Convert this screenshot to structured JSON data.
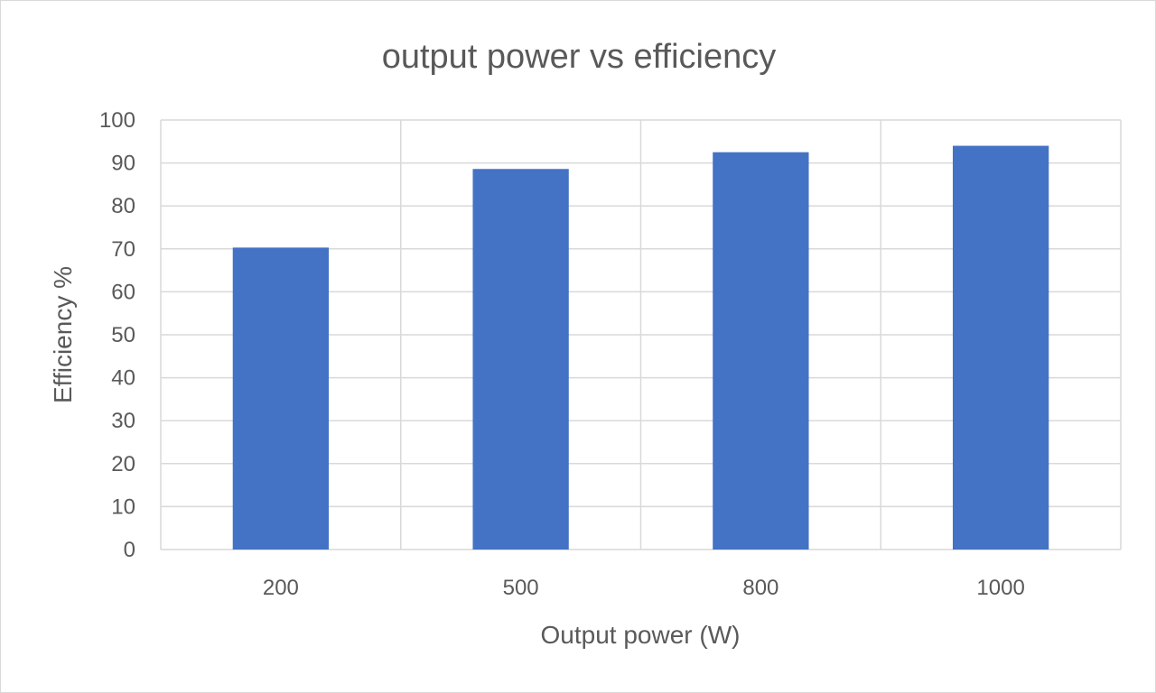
{
  "chart_data": {
    "type": "bar",
    "title": "output power vs efficiency",
    "xlabel": "Output power (W)",
    "ylabel": "Efficiency %",
    "categories": [
      "200",
      "500",
      "800",
      "1000"
    ],
    "series": [
      {
        "values": [
          70.3,
          88.6,
          92.5,
          94.0
        ]
      }
    ],
    "ylim": [
      0,
      100
    ],
    "yticks": [
      "0",
      "10",
      "20",
      "30",
      "40",
      "50",
      "60",
      "70",
      "80",
      "90",
      "100"
    ],
    "grid": true,
    "legend": "none",
    "bar_color": "#4472C4",
    "grid_color": "#d9d9d9",
    "text_color": "#595959"
  }
}
